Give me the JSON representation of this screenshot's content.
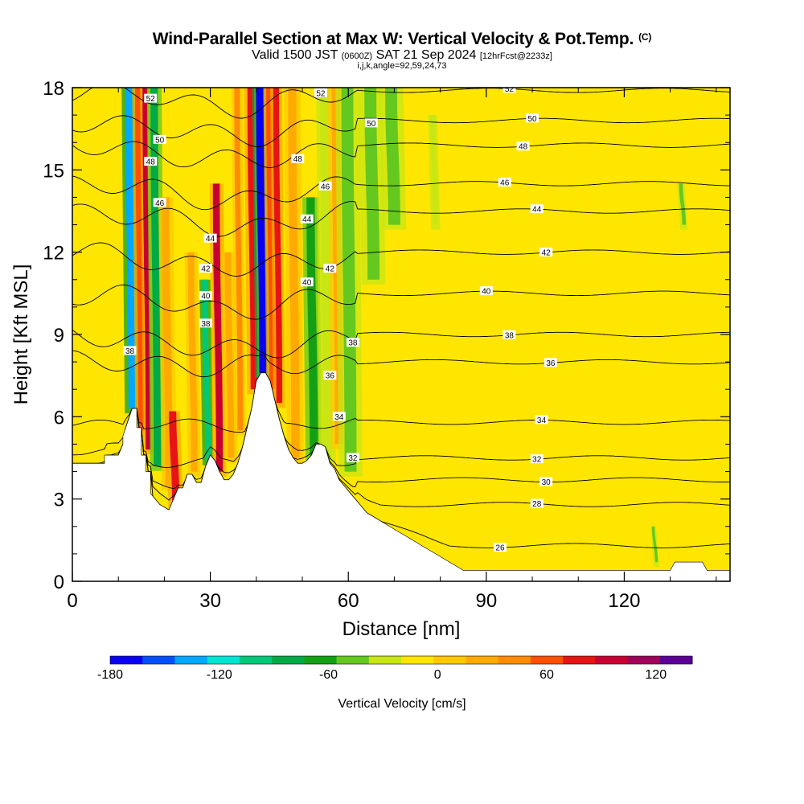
{
  "header": {
    "title": "Wind-Parallel Section at Max W: Vertical Velocity & Pot.Temp.",
    "title_mark": "(C)",
    "valid_prefix": "Valid 1500 JST",
    "valid_zulu": "(0600Z)",
    "valid_date": "SAT 21 Sep 2024",
    "forecast": "[12hrFcst@2233z]",
    "params": "i,j,k,angle=92,59,24,73"
  },
  "chart_data": {
    "type": "heatmap",
    "xlabel": "Distance [nm]",
    "ylabel": "Height [Kft MSL]",
    "xlim": [
      0,
      143
    ],
    "ylim": [
      0,
      18
    ],
    "x_ticks": [
      0,
      30,
      60,
      90,
      120
    ],
    "y_ticks": [
      0,
      3,
      6,
      9,
      12,
      15,
      18
    ],
    "x_minor_step": 10,
    "y_minor_step": 1,
    "colorbar": {
      "label": "Vertical Velocity [cm/s]",
      "min": -180,
      "max": 140,
      "step": 20,
      "tick_values": [
        -180,
        -120,
        -60,
        0,
        60,
        120
      ],
      "tick_labels": [
        "-180",
        "-120",
        "-60",
        "0",
        "60",
        "120"
      ],
      "colors": [
        "#0a00f0",
        "#0050ff",
        "#00a8ff",
        "#00e6d2",
        "#00c878",
        "#00aa46",
        "#14a014",
        "#64c81e",
        "#c8e614",
        "#ffe600",
        "#ffc800",
        "#ffaa00",
        "#ff8c00",
        "#ff5000",
        "#e61414",
        "#c80032",
        "#a0005a",
        "#5a0096"
      ]
    },
    "terrain": {
      "x": [
        0,
        7,
        7,
        10,
        11,
        11,
        13,
        14,
        14,
        15,
        15,
        16,
        16,
        17,
        17,
        18,
        19,
        20,
        21,
        22,
        23,
        24,
        25,
        26,
        27,
        28,
        29,
        30,
        31,
        32,
        33,
        34,
        35,
        36,
        37,
        38,
        39,
        40,
        41,
        42,
        43,
        44,
        45,
        46,
        47,
        48,
        49,
        50,
        51,
        52,
        53,
        54,
        55,
        56,
        57,
        58,
        59,
        60,
        61,
        62,
        63,
        64,
        65,
        66,
        67,
        68,
        69,
        70,
        71,
        72,
        73,
        74,
        75,
        76,
        77,
        78,
        79,
        80,
        81,
        82,
        83,
        84,
        85,
        86,
        87,
        88,
        89,
        90,
        95,
        100,
        105,
        110,
        115,
        120,
        122,
        124,
        125,
        126,
        127,
        128,
        129,
        130,
        131,
        132,
        133,
        134,
        135,
        136,
        137,
        138,
        139,
        140,
        141,
        142,
        143
      ],
      "height": [
        4.3,
        4.3,
        4.6,
        4.6,
        5.0,
        5.3,
        6.3,
        6.3,
        5.6,
        5.6,
        4.6,
        4.6,
        4.0,
        4.0,
        3.2,
        3.0,
        2.8,
        2.7,
        2.6,
        3.0,
        3.4,
        3.4,
        3.9,
        3.9,
        3.6,
        3.6,
        4.2,
        4.6,
        4.4,
        4.0,
        3.7,
        3.7,
        3.9,
        4.3,
        4.9,
        5.6,
        6.3,
        7.3,
        7.6,
        7.6,
        7.3,
        6.6,
        5.9,
        5.3,
        4.8,
        4.5,
        4.3,
        4.3,
        4.4,
        4.6,
        5.0,
        5.0,
        4.9,
        4.3,
        4.1,
        3.7,
        3.5,
        3.3,
        3.1,
        2.9,
        2.7,
        2.5,
        2.4,
        2.3,
        2.2,
        2.1,
        2.0,
        1.9,
        1.8,
        1.7,
        1.6,
        1.5,
        1.4,
        1.3,
        1.2,
        1.1,
        1.0,
        0.9,
        0.8,
        0.7,
        0.6,
        0.5,
        0.4,
        0.4,
        0.4,
        0.4,
        0.4,
        0.4,
        0.4,
        0.4,
        0.4,
        0.4,
        0.4,
        0.4,
        0.4,
        0.4,
        0.4,
        0.4,
        0.4,
        0.4,
        0.4,
        0.4,
        0.7,
        0.7,
        0.7,
        0.7,
        0.7,
        0.7,
        0.7,
        0.4,
        0.4,
        0.4,
        0.4,
        0.4,
        0.4
      ]
    },
    "updrafts": [
      {
        "x": 13.0,
        "w": -130,
        "width": 1.6,
        "z_bot": 6.3,
        "z_top": 18
      },
      {
        "x": 15.0,
        "w": 90,
        "width": 1.3,
        "z_bot": 5.5,
        "z_top": 18
      },
      {
        "x": 16.5,
        "w": 120,
        "width": 1.1,
        "z_bot": 4.8,
        "z_top": 18
      },
      {
        "x": 18.5,
        "w": -70,
        "width": 1.6,
        "z_bot": 4.2,
        "z_top": 18
      },
      {
        "x": 21.0,
        "w": 55,
        "width": 1.6,
        "z_bot": 3.5,
        "z_top": 14
      },
      {
        "x": 22.5,
        "w": 110,
        "width": 1.6,
        "z_bot": 2.8,
        "z_top": 6.2
      },
      {
        "x": 26.5,
        "w": 55,
        "width": 1.4,
        "z_bot": 4.0,
        "z_top": 12
      },
      {
        "x": 29.5,
        "w": -100,
        "width": 1.2,
        "z_bot": 4.4,
        "z_top": 11
      },
      {
        "x": 32.0,
        "w": 120,
        "width": 1.5,
        "z_bot": 4.0,
        "z_top": 14.5
      },
      {
        "x": 34.5,
        "w": 45,
        "width": 1.4,
        "z_bot": 4.5,
        "z_top": 12
      },
      {
        "x": 36.5,
        "w": 70,
        "width": 1.2,
        "z_bot": 5.5,
        "z_top": 18
      },
      {
        "x": 39.5,
        "w": 100,
        "width": 1.5,
        "z_bot": 7.0,
        "z_top": 18
      },
      {
        "x": 41.5,
        "w": -175,
        "width": 1.7,
        "z_bot": 7.6,
        "z_top": 18
      },
      {
        "x": 43.5,
        "w": 90,
        "width": 1.3,
        "z_bot": 7.0,
        "z_top": 18
      },
      {
        "x": 45.0,
        "w": 115,
        "width": 1.3,
        "z_bot": 6.5,
        "z_top": 18
      },
      {
        "x": 48.5,
        "w": 50,
        "width": 1.8,
        "z_bot": 4.5,
        "z_top": 18
      },
      {
        "x": 52.5,
        "w": -60,
        "width": 1.8,
        "z_bot": 4.6,
        "z_top": 14.0
      },
      {
        "x": 55.5,
        "w": -20,
        "width": 1.8,
        "z_bot": 4.5,
        "z_top": 18
      },
      {
        "x": 58.0,
        "w": 45,
        "width": 1.8,
        "z_bot": 5.0,
        "z_top": 18
      },
      {
        "x": 60.5,
        "w": -25,
        "width": 2.6,
        "z_bot": 4.0,
        "z_top": 18
      },
      {
        "x": 65.5,
        "w": -35,
        "width": 2.6,
        "z_bot": 11.0,
        "z_top": 18
      },
      {
        "x": 70.0,
        "w": -25,
        "width": 2.6,
        "z_bot": 13.0,
        "z_top": 18
      },
      {
        "x": 79.0,
        "w": -15,
        "width": 1.0,
        "z_bot": 13.0,
        "z_top": 17.0
      },
      {
        "x": 86.0,
        "w": 10,
        "width": 4.0,
        "z_bot": 1.0,
        "z_top": 18
      },
      {
        "x": 96.0,
        "w": 8,
        "width": 3.0,
        "z_bot": 6.0,
        "z_top": 11.0
      },
      {
        "x": 122.0,
        "w": 10,
        "width": 3.0,
        "z_bot": 6.0,
        "z_top": 10.0
      },
      {
        "x": 126.0,
        "w": 10,
        "width": 3.0,
        "z_bot": 15.0,
        "z_top": 18
      },
      {
        "x": 133.0,
        "w": -25,
        "width": 0.8,
        "z_bot": 13.0,
        "z_top": 14.5
      },
      {
        "x": 138.0,
        "w": 10,
        "width": 2.5,
        "z_bot": 8.0,
        "z_top": 12.0
      },
      {
        "x": 131.0,
        "w": 10,
        "width": 3.0,
        "z_bot": 1.0,
        "z_top": 4.0
      },
      {
        "x": 127.0,
        "w": -35,
        "width": 0.6,
        "z_bot": 0.7,
        "z_top": 2.0
      }
    ],
    "theta_contours": [
      {
        "label": "26",
        "base": 1.3,
        "label_x": 93
      },
      {
        "label": "28",
        "base": 2.8,
        "label_x": 101
      },
      {
        "label": "30",
        "base": 3.7,
        "label_x": 103
      },
      {
        "label": "32",
        "base": 4.5,
        "label_x": 101
      },
      {
        "label": "34",
        "base": 5.8,
        "label_x": 102
      },
      {
        "label": "36",
        "base": 8.0,
        "label_x": 104
      },
      {
        "label": "38",
        "base": 9.0,
        "label_x": 95
      },
      {
        "label": "40",
        "base": 10.5,
        "label_x": 90
      },
      {
        "label": "42",
        "base": 12.0,
        "label_x": 103
      },
      {
        "label": "44",
        "base": 13.5,
        "label_x": 101
      },
      {
        "label": "46",
        "base": 14.5,
        "label_x": 94
      },
      {
        "label": "48",
        "base": 15.9,
        "label_x": 98
      },
      {
        "label": "50",
        "base": 16.8,
        "label_x": 100
      },
      {
        "label": "52",
        "base": 17.9,
        "label_x": 95
      }
    ],
    "extra_contour_labels": [
      {
        "label": "52",
        "x": 17,
        "y": 17.6
      },
      {
        "label": "50",
        "x": 19,
        "y": 16.1
      },
      {
        "label": "48",
        "x": 17,
        "y": 15.3
      },
      {
        "label": "46",
        "x": 19,
        "y": 13.8
      },
      {
        "label": "44",
        "x": 30,
        "y": 12.5
      },
      {
        "label": "42",
        "x": 29,
        "y": 11.4
      },
      {
        "label": "40",
        "x": 29,
        "y": 10.4
      },
      {
        "label": "38",
        "x": 29,
        "y": 9.4
      },
      {
        "label": "38",
        "x": 12.5,
        "y": 8.4
      },
      {
        "label": "52",
        "x": 54,
        "y": 17.8
      },
      {
        "label": "50",
        "x": 65,
        "y": 16.7
      },
      {
        "label": "48",
        "x": 49,
        "y": 15.4
      },
      {
        "label": "46",
        "x": 55,
        "y": 14.4
      },
      {
        "label": "44",
        "x": 51,
        "y": 13.2
      },
      {
        "label": "42",
        "x": 56,
        "y": 11.4
      },
      {
        "label": "40",
        "x": 51,
        "y": 10.9
      },
      {
        "label": "38",
        "x": 61,
        "y": 8.7
      },
      {
        "label": "36",
        "x": 56,
        "y": 7.5
      },
      {
        "label": "34",
        "x": 58,
        "y": 6.0
      },
      {
        "label": "32",
        "x": 61,
        "y": 4.5
      }
    ]
  }
}
